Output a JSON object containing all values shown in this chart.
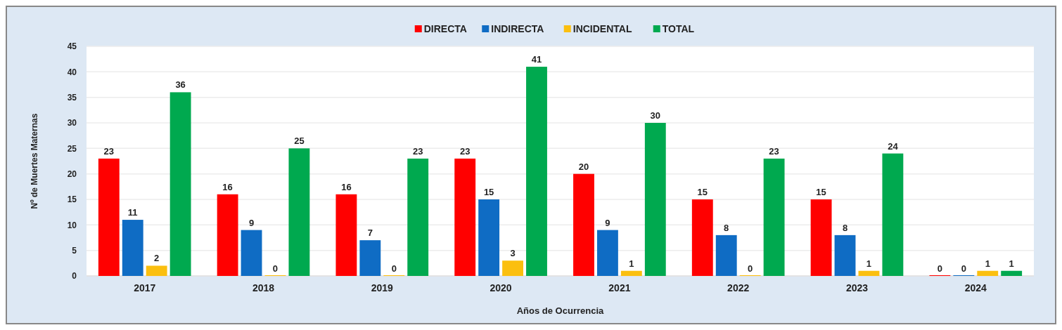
{
  "chart_data": {
    "type": "bar",
    "xlabel": "Años de Ocurrencia",
    "ylabel": "Nº de Muertes Maternas",
    "categories": [
      "2017",
      "2018",
      "2019",
      "2020",
      "2021",
      "2022",
      "2023",
      "2024"
    ],
    "series": [
      {
        "name": "DIRECTA",
        "color": "#ff0000",
        "values": [
          23,
          16,
          16,
          23,
          20,
          15,
          15,
          0
        ]
      },
      {
        "name": "INDIRECTA",
        "color": "#0f6cc4",
        "values": [
          11,
          9,
          7,
          15,
          9,
          8,
          8,
          0
        ]
      },
      {
        "name": "INCIDENTAL",
        "color": "#fbbf0f",
        "values": [
          2,
          0,
          0,
          3,
          1,
          0,
          1,
          1
        ]
      },
      {
        "name": "TOTAL",
        "color": "#00a94f",
        "values": [
          36,
          25,
          23,
          41,
          30,
          23,
          24,
          1
        ]
      }
    ],
    "ylim": [
      0,
      45
    ],
    "yticks": [
      0,
      5,
      10,
      15,
      20,
      25,
      30,
      35,
      40,
      45
    ],
    "grid": "y",
    "legend": "top",
    "data_labels": true
  }
}
